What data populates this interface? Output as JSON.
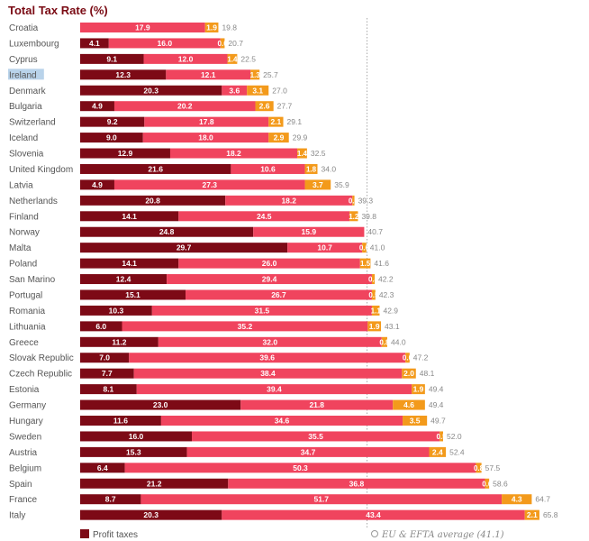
{
  "chart_data": {
    "type": "bar",
    "orientation": "horizontal",
    "stacked": true,
    "title": "Total Tax Rate (%)",
    "categories": [
      "Croatia",
      "Luxembourg",
      "Cyprus",
      "Ireland",
      "Denmark",
      "Bulgaria",
      "Switzerland",
      "Iceland",
      "Slovenia",
      "United Kingdom",
      "Latvia",
      "Netherlands",
      "Finland",
      "Norway",
      "Malta",
      "Poland",
      "San Marino",
      "Portugal",
      "Romania",
      "Lithuania",
      "Greece",
      "Slovak Republic",
      "Czech Republic",
      "Estonia",
      "Germany",
      "Hungary",
      "Sweden",
      "Austria",
      "Belgium",
      "Spain",
      "France",
      "Italy"
    ],
    "highlighted_category": "Ireland",
    "series": [
      {
        "name": "Profit taxes",
        "color": "#7d0a16",
        "values": [
          0.0,
          4.1,
          9.1,
          12.3,
          20.3,
          4.9,
          9.2,
          9.0,
          12.9,
          21.6,
          4.9,
          20.8,
          14.1,
          24.8,
          29.7,
          14.1,
          12.4,
          15.1,
          10.3,
          6.0,
          11.2,
          7.0,
          7.7,
          8.1,
          23.0,
          11.6,
          16.0,
          15.3,
          6.4,
          21.2,
          8.7,
          20.3
        ]
      },
      {
        "color": "#f0445e",
        "values": [
          17.9,
          16.0,
          12.0,
          12.1,
          3.6,
          20.2,
          17.8,
          18.0,
          18.2,
          10.6,
          27.3,
          18.2,
          24.5,
          15.9,
          10.7,
          26.0,
          29.4,
          26.7,
          31.5,
          35.2,
          32.0,
          39.6,
          38.4,
          39.4,
          21.8,
          34.6,
          35.5,
          34.7,
          50.3,
          36.8,
          51.7,
          43.4
        ]
      },
      {
        "color": "#f39a1b",
        "values": [
          1.9,
          0.6,
          1.4,
          1.3,
          3.1,
          2.6,
          2.1,
          2.9,
          1.4,
          1.8,
          3.7,
          0.3,
          1.2,
          0.0,
          0.6,
          1.5,
          0.4,
          0.5,
          1.1,
          1.9,
          0.8,
          0.6,
          2.0,
          1.9,
          4.6,
          3.5,
          0.5,
          2.4,
          0.8,
          0.6,
          4.3,
          2.1
        ]
      }
    ],
    "totals": [
      19.8,
      20.7,
      22.5,
      25.7,
      27.0,
      27.7,
      29.1,
      29.9,
      32.5,
      34.0,
      35.9,
      39.3,
      39.8,
      40.7,
      41.0,
      41.6,
      42.2,
      42.3,
      42.9,
      43.1,
      44.0,
      47.2,
      48.1,
      49.4,
      49.4,
      49.7,
      52.0,
      52.4,
      57.5,
      58.6,
      64.7,
      65.8
    ],
    "xlim": [
      0,
      70
    ],
    "average": {
      "label": "EU & EFTA average (41.1)",
      "value": 41.1
    },
    "legend": {
      "label": "Profit taxes",
      "color": "#7d0a16",
      "position": "bottom"
    },
    "grid": false
  }
}
